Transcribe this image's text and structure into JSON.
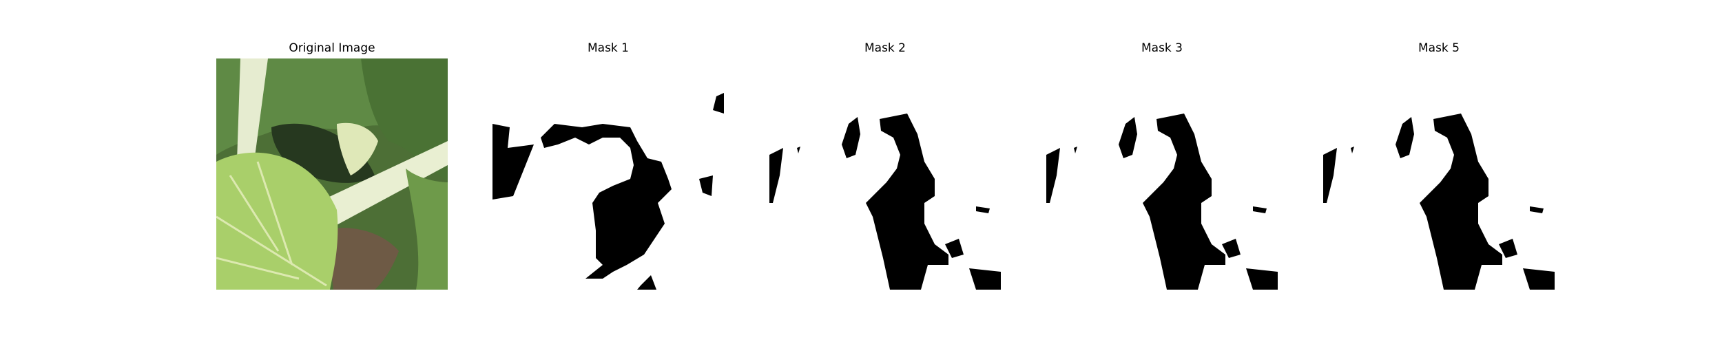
{
  "panels": [
    {
      "title": "Original Image"
    },
    {
      "title": "Mask 1"
    },
    {
      "title": "Mask 2"
    },
    {
      "title": "Mask 3"
    },
    {
      "title": "Mask 5"
    }
  ],
  "colors": {
    "background": "#ffffff",
    "mask_foreground": "#000000",
    "mask_background": "#ffffff",
    "leaf_light": "#a9cf6a",
    "leaf_dark": "#3a5a2c",
    "stem": "#e8eed0",
    "soil": "#6e5a45"
  }
}
